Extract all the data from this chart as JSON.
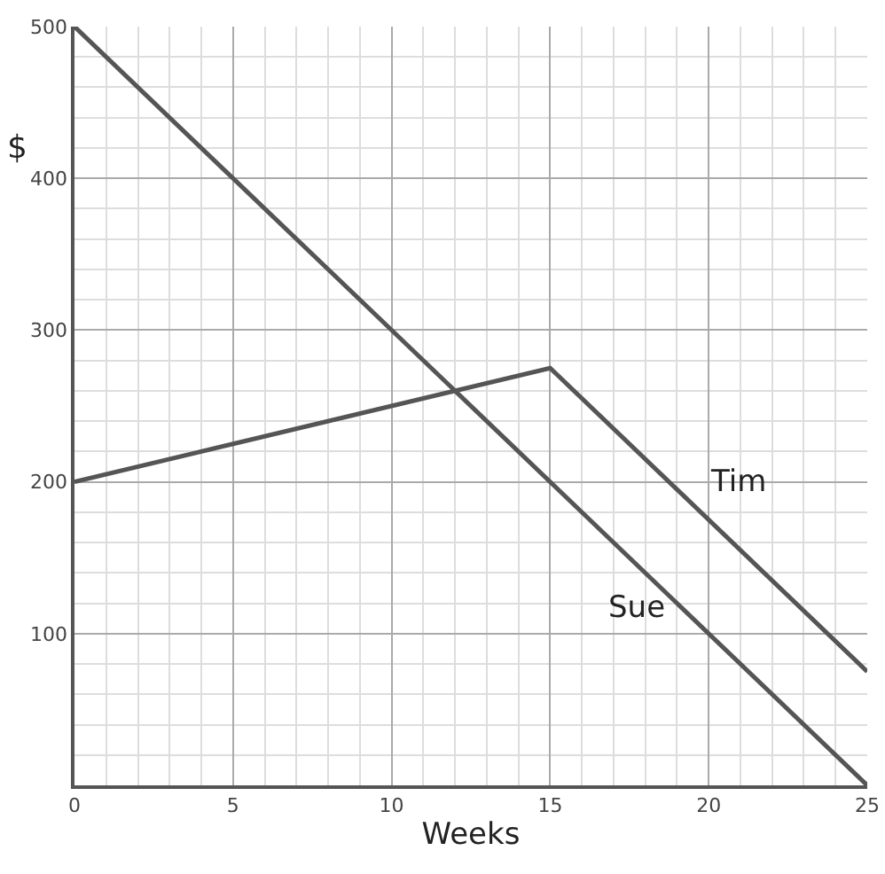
{
  "chart_data": {
    "type": "line",
    "xlabel": "Weeks",
    "ylabel": "$",
    "series": [
      {
        "name": "Sue",
        "color": "#555555",
        "x": [
          0,
          25
        ],
        "values": [
          500,
          0
        ]
      },
      {
        "name": "Tim",
        "color": "#555555",
        "x": [
          0,
          15,
          25
        ],
        "values": [
          200,
          275,
          75
        ]
      }
    ],
    "xlim": [
      0,
      25
    ],
    "xticks": [
      0,
      5,
      10,
      15,
      20,
      25
    ],
    "ylim": [
      0,
      500
    ],
    "yticks": [
      {
        "value": 0,
        "label": null
      },
      100,
      200,
      300,
      400,
      500
    ],
    "grid": true,
    "legend": false,
    "marker": "none",
    "line_style": "solid"
  }
}
